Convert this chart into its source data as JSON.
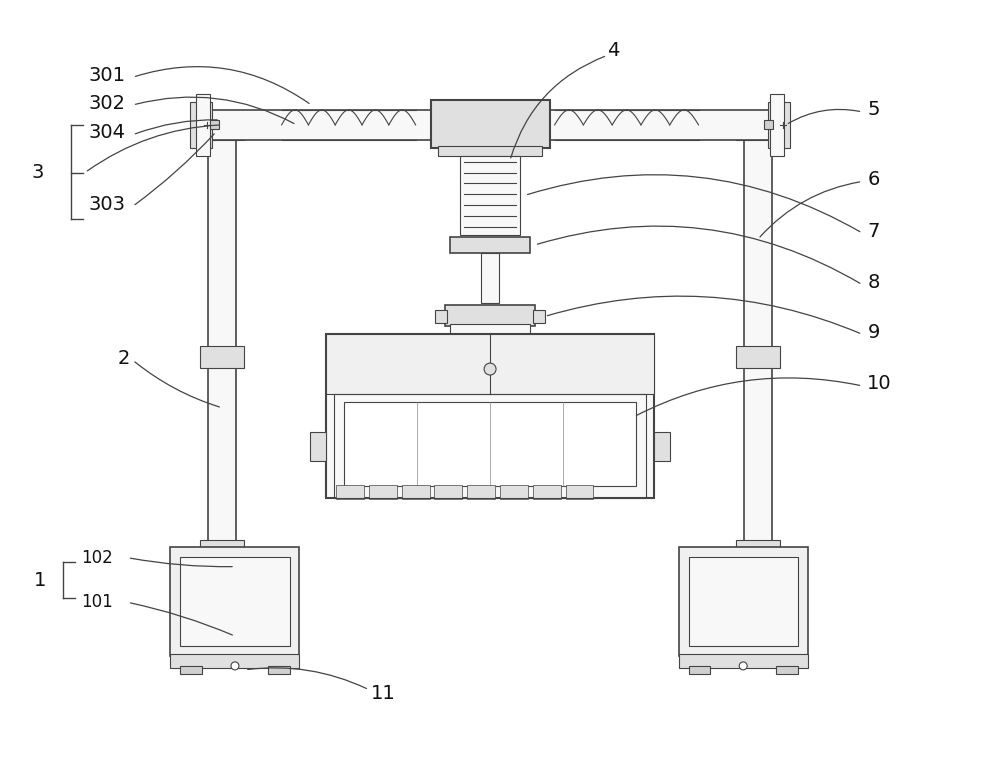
{
  "bg_color": "#ffffff",
  "lc": "#444444",
  "lc_light": "#888888",
  "fc_main": "#f0f0f0",
  "fc_med": "#e0e0e0",
  "fc_light": "#f8f8f8",
  "fc_dark": "#d0d0d0",
  "label_color": "#111111",
  "figsize": [
    10.0,
    7.58
  ],
  "dpi": 100
}
